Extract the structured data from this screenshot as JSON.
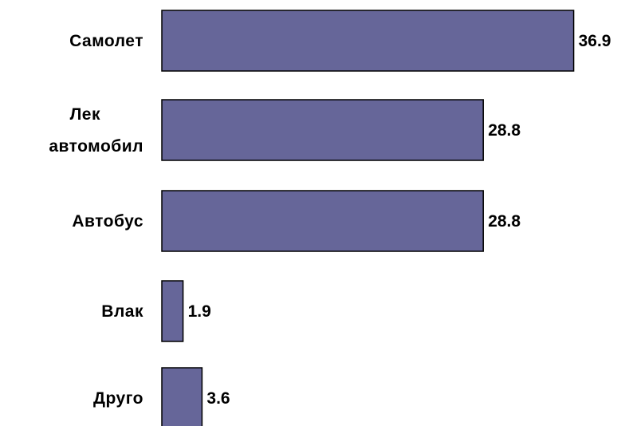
{
  "chart_data": {
    "type": "bar",
    "orientation": "horizontal",
    "categories": [
      [
        "Самолет"
      ],
      [
        "Лек",
        "автомобил"
      ],
      [
        "Автобус"
      ],
      [
        "Влак"
      ],
      [
        "Друго"
      ]
    ],
    "values": [
      36.9,
      28.8,
      28.8,
      1.9,
      3.6
    ],
    "value_labels": [
      "36.9",
      "28.8",
      "28.8",
      "1.9",
      "3.6"
    ],
    "bar_color": "#666699",
    "grid": false,
    "legend": "none"
  }
}
